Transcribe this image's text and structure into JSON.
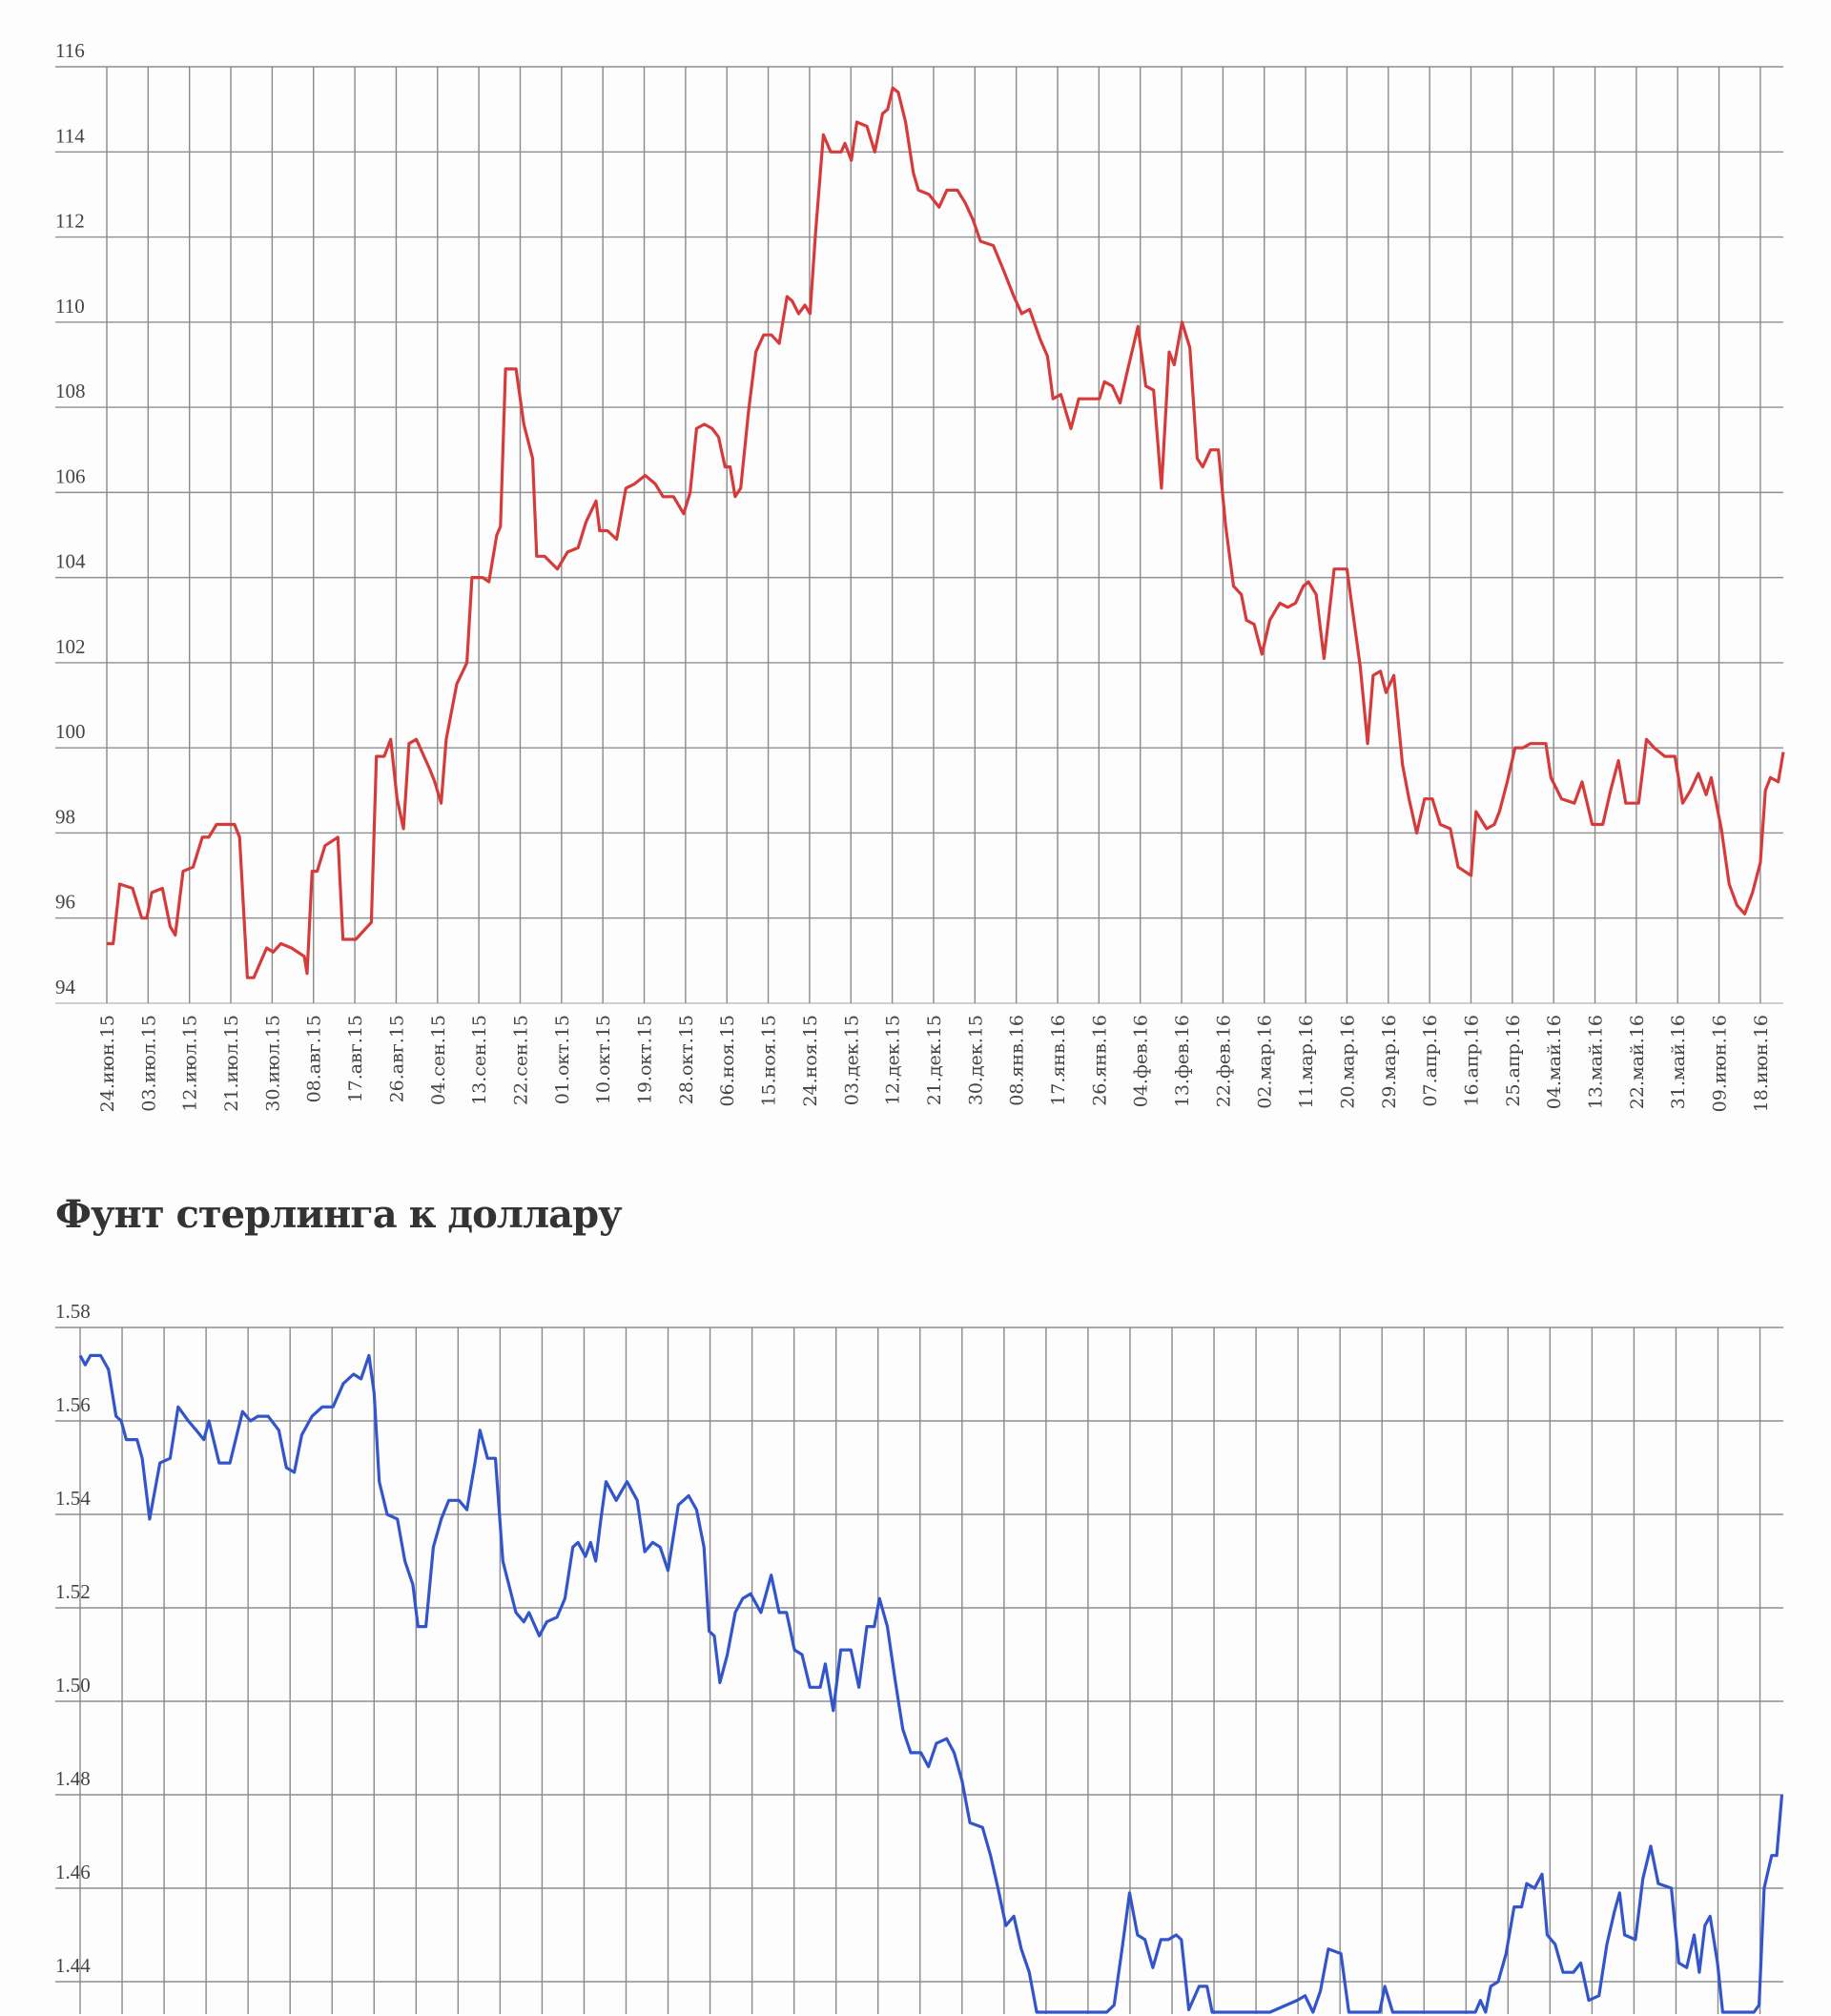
{
  "chart_data": [
    {
      "type": "line",
      "title": "",
      "x_unit": "days since first tick label",
      "x_tick_step_days": 9,
      "x_tick_labels": [
        "24.июн.15",
        "03.июл.15",
        "12.июл.15",
        "21.июл.15",
        "30.июл.15",
        "08.авг.15",
        "17.авг.15",
        "26.авг.15",
        "04.сен.15",
        "13.сен.15",
        "22.сен.15",
        "01.окт.15",
        "10.окт.15",
        "19.окт.15",
        "28.окт.15",
        "06.ноя.15",
        "15.ноя.15",
        "24.ноя.15",
        "03.дек.15",
        "12.дек.15",
        "21.дек.15",
        "30.дек.15",
        "08.янв.16",
        "17.янв.16",
        "26.янв.16",
        "04.фев.16",
        "13.фев.16",
        "22.фев.16",
        "02.мар.16",
        "11.мар.16",
        "20.мар.16",
        "29.мар.16",
        "07.апр.16",
        "16.апр.16",
        "25.апр.16",
        "04.май.16",
        "13.май.16",
        "22.май.16",
        "31.май.16",
        "09.июн.16",
        "18.июн.16"
      ],
      "xlim": [
        0,
        365
      ],
      "ylim": [
        94,
        116
      ],
      "y_ticks": [
        "116",
        "114",
        "112",
        "110",
        "108",
        "106",
        "104",
        "102",
        "100",
        "98",
        "96",
        "94"
      ],
      "y_tick_values": [
        116,
        114,
        112,
        110,
        108,
        106,
        104,
        102,
        100,
        98,
        96,
        94
      ],
      "grid": true,
      "series": [
        {
          "name": "",
          "color": "#d63b3b",
          "x": [
            0,
            1.4,
            2.8,
            5.6,
            7.6,
            8.7,
            9.8,
            12.1,
            13.8,
            14.9,
            16.6,
            18.8,
            20.8,
            22.2,
            23.9,
            26.1,
            27.8,
            28.9,
            30.6,
            32.0,
            34.8,
            36.2,
            37.9,
            40.2,
            43.0,
            43.6,
            44.7,
            45.8,
            47.5,
            50.3,
            51.4,
            54.2,
            57.6,
            58.7,
            60.4,
            61.8,
            63.2,
            64.6,
            65.8,
            67.4,
            70.3,
            71.4,
            72.8,
            73.9,
            76.2,
            78.4,
            79.5,
            81.8,
            83.2,
            84.9,
            85.7,
            86.8,
            89.1,
            90.8,
            92.7,
            93.6,
            95.3,
            98.1,
            100.3,
            102.6,
            104.3,
            106.5,
            107.3,
            109.0,
            111.0,
            113.0,
            114.9,
            117.2,
            119.4,
            121.1,
            123.4,
            125.6,
            127.0,
            128.4,
            130.1,
            131.8,
            133.2,
            134.6,
            135.7,
            136.8,
            138.0,
            139.7,
            141.3,
            143.0,
            144.7,
            146.4,
            148.1,
            149.2,
            150.6,
            152.0,
            153.1,
            154.3,
            156.0,
            157.6,
            159.9,
            160.7,
            162.1,
            163.3,
            165.5,
            167.2,
            168.9,
            170.0,
            171.1,
            172.3,
            173.9,
            175.6,
            176.7,
            179.0,
            181.2,
            182.9,
            185.2,
            186.9,
            188.6,
            190.2,
            193.0,
            195.3,
            197.5,
            199.2,
            200.9,
            203.2,
            204.8,
            206.0,
            207.7,
            209.9,
            211.6,
            214.4,
            216.1,
            217.2,
            218.9,
            220.6,
            222.3,
            224.5,
            226.2,
            227.9,
            229.6,
            231.3,
            232.4,
            234.1,
            235.8,
            237.4,
            238.6,
            240.3,
            242.0,
            243.6,
            245.3,
            247.0,
            248.1,
            249.8,
            251.5,
            253.2,
            255.4,
            257.1,
            258.8,
            260.5,
            261.6,
            263.3,
            265.0,
            267.2,
            270.0,
            272.9,
            274.5,
            275.7,
            277.3,
            278.5,
            280.2,
            282.1,
            283.5,
            285.2,
            286.9,
            288.6,
            290.3,
            292.5,
            294.2,
            297.0,
            298.1,
            300.4,
            302.1,
            303.2,
            304.9,
            306.6,
            308.3,
            309.9,
            313.3,
            314.4,
            316.7,
            319.5,
            321.2,
            323.4,
            325.7,
            327.4,
            329.1,
            330.7,
            333.5,
            335.2,
            336.9,
            339.2,
            341.4,
            343.1,
            344.8,
            346.5,
            348.2,
            349.3,
            351.5,
            353.2,
            354.9,
            356.6,
            358.3,
            360.0,
            361.1,
            362.2,
            363.9,
            365.0
          ],
          "values": [
            95.4,
            95.4,
            96.8,
            96.7,
            96.0,
            96.0,
            96.6,
            96.7,
            95.8,
            95.6,
            97.1,
            97.2,
            97.9,
            97.9,
            98.2,
            98.2,
            98.2,
            97.9,
            94.6,
            94.6,
            95.3,
            95.2,
            95.4,
            95.3,
            95.1,
            94.7,
            97.1,
            97.1,
            97.7,
            97.9,
            95.5,
            95.5,
            95.9,
            99.8,
            99.8,
            100.2,
            98.8,
            98.1,
            100.1,
            100.2,
            99.5,
            99.2,
            98.7,
            100.2,
            101.5,
            102.0,
            104.0,
            104.0,
            103.9,
            105.0,
            105.2,
            108.9,
            108.9,
            107.6,
            106.8,
            104.5,
            104.5,
            104.2,
            104.6,
            104.7,
            105.3,
            105.8,
            105.1,
            105.1,
            104.9,
            106.1,
            106.2,
            106.4,
            106.2,
            105.9,
            105.9,
            105.5,
            106.0,
            107.5,
            107.6,
            107.5,
            107.3,
            106.6,
            106.6,
            105.9,
            106.1,
            107.9,
            109.3,
            109.7,
            109.7,
            109.5,
            110.6,
            110.5,
            110.2,
            110.4,
            110.2,
            112.1,
            114.4,
            114.0,
            114.0,
            114.2,
            113.8,
            114.7,
            114.6,
            114.0,
            114.9,
            115.0,
            115.5,
            115.4,
            114.7,
            113.5,
            113.1,
            113.0,
            112.7,
            113.1,
            113.1,
            112.8,
            112.4,
            111.9,
            111.8,
            111.2,
            110.6,
            110.2,
            110.3,
            109.6,
            109.2,
            108.2,
            108.3,
            107.5,
            108.2,
            108.2,
            108.2,
            108.6,
            108.5,
            108.1,
            108.9,
            109.9,
            108.5,
            108.4,
            106.1,
            109.3,
            109.0,
            110.0,
            109.4,
            106.8,
            106.6,
            107.0,
            107.0,
            105.2,
            103.8,
            103.6,
            103.0,
            102.9,
            102.2,
            103.0,
            103.4,
            103.3,
            103.4,
            103.8,
            103.9,
            103.6,
            102.1,
            104.2,
            104.2,
            101.9,
            100.1,
            101.7,
            101.8,
            101.3,
            101.7,
            99.6,
            98.8,
            98.0,
            98.8,
            98.8,
            98.2,
            98.1,
            97.2,
            97.0,
            98.5,
            98.1,
            98.2,
            98.5,
            99.2,
            100.0,
            100.0,
            100.1,
            100.1,
            99.3,
            98.8,
            98.7,
            99.2,
            98.2,
            98.2,
            99.0,
            99.7,
            98.7,
            98.7,
            100.2,
            100.0,
            99.8,
            99.8,
            98.7,
            99.0,
            99.4,
            98.9,
            99.3,
            98.1,
            96.8,
            96.3,
            96.1,
            96.6,
            97.3,
            99.0,
            99.3,
            99.2,
            99.9
          ]
        }
      ]
    },
    {
      "type": "line",
      "title": "Фунт стерлинга к доллару",
      "x_unit": "days since start",
      "x_tick_step_days": 9,
      "xlim": [
        0,
        365
      ],
      "ylim": [
        1.432,
        1.58
      ],
      "y_ticks": [
        "1.58",
        "1.56",
        "1.54",
        "1.52",
        "1.50",
        "1.48",
        "1.46",
        "1.44"
      ],
      "y_tick_values": [
        1.58,
        1.56,
        1.54,
        1.52,
        1.5,
        1.48,
        1.46,
        1.44
      ],
      "grid": true,
      "series": [
        {
          "name": "",
          "color": "#3355cc",
          "x": [
            0,
            1.1,
            2.2,
            4.4,
            6.1,
            7.7,
            8.8,
            9.9,
            12.2,
            13.3,
            14.9,
            16.0,
            17.1,
            19.3,
            21.0,
            23.2,
            24.9,
            26.5,
            27.6,
            29.8,
            32.1,
            34.8,
            36.5,
            38.1,
            40.3,
            42.6,
            44.2,
            45.9,
            47.5,
            49.7,
            51.9,
            54.2,
            56.4,
            58.6,
            60.2,
            61.9,
            63.0,
            64.1,
            65.8,
            68.0,
            69.6,
            71.3,
            72.4,
            74.1,
            75.7,
            77.4,
            79.0,
            81.2,
            82.9,
            84.6,
            85.7,
            87.3,
            89.0,
            90.6,
            93.4,
            95.1,
            96.2,
            98.4,
            100.0,
            102.2,
            103.9,
            105.6,
            106.7,
            108.3,
            109.4,
            110.5,
            111.6,
            112.7,
            114.9,
            117.2,
            119.4,
            121.0,
            122.7,
            124.3,
            126.0,
            128.2,
            130.4,
            132.1,
            133.7,
            134.8,
            135.9,
            137.1,
            138.7,
            140.4,
            142.0,
            143.7,
            145.9,
            148.1,
            149.8,
            151.4,
            153.1,
            154.7,
            156.4,
            158.6,
            159.7,
            161.4,
            163.0,
            165.2,
            166.9,
            168.6,
            170.2,
            171.3,
            173.0,
            174.6,
            176.3,
            178.0,
            180.2,
            181.8,
            183.5,
            185.7,
            187.3,
            189.0,
            190.7,
            193.4,
            195.1,
            196.7,
            198.4,
            200.1,
            201.7,
            203.4,
            205.0,
            209.4,
            215.0,
            220.0,
            221.6,
            223.3,
            224.9,
            226.6,
            228.2,
            229.9,
            231.6,
            233.2,
            234.9,
            236.0,
            237.6,
            239.8,
            241.5,
            242.6,
            248.1,
            255.0,
            260.8,
            262.5,
            264.2,
            265.8,
            267.5,
            270.2,
            271.9,
            275.2,
            278.5,
            279.6,
            281.3,
            286.8,
            293.7,
            299.0,
            300.1,
            301.2,
            302.3,
            303.9,
            305.6,
            307.3,
            308.9,
            310.0,
            311.7,
            313.3,
            314.4,
            316.1,
            317.8,
            320.0,
            321.6,
            323.3,
            325.5,
            327.2,
            328.8,
            329.9,
            331.0,
            333.3,
            334.9,
            336.6,
            338.2,
            341.0,
            342.6,
            344.3,
            345.9,
            347.0,
            348.2,
            349.3,
            350.9,
            352.0,
            355.3,
            358.7,
            359.8,
            360.9,
            362.5,
            363.6,
            364.7
          ],
          "values": [
            1.574,
            1.572,
            1.574,
            1.574,
            1.571,
            1.561,
            1.56,
            1.556,
            1.556,
            1.552,
            1.539,
            1.545,
            1.551,
            1.552,
            1.563,
            1.56,
            1.558,
            1.556,
            1.56,
            1.551,
            1.551,
            1.562,
            1.56,
            1.561,
            1.561,
            1.558,
            1.55,
            1.549,
            1.557,
            1.561,
            1.563,
            1.563,
            1.568,
            1.57,
            1.569,
            1.574,
            1.566,
            1.547,
            1.54,
            1.539,
            1.53,
            1.525,
            1.516,
            1.516,
            1.533,
            1.539,
            1.543,
            1.543,
            1.541,
            1.551,
            1.558,
            1.552,
            1.552,
            1.53,
            1.519,
            1.517,
            1.519,
            1.514,
            1.517,
            1.518,
            1.522,
            1.533,
            1.534,
            1.531,
            1.534,
            1.53,
            1.539,
            1.547,
            1.543,
            1.547,
            1.543,
            1.532,
            1.534,
            1.533,
            1.528,
            1.542,
            1.544,
            1.541,
            1.533,
            1.515,
            1.514,
            1.504,
            1.51,
            1.519,
            1.522,
            1.523,
            1.519,
            1.527,
            1.519,
            1.519,
            1.511,
            1.51,
            1.503,
            1.503,
            1.508,
            1.498,
            1.511,
            1.511,
            1.503,
            1.516,
            1.516,
            1.522,
            1.516,
            1.505,
            1.494,
            1.489,
            1.489,
            1.486,
            1.491,
            1.492,
            1.489,
            1.483,
            1.474,
            1.473,
            1.467,
            1.46,
            1.452,
            1.454,
            1.447,
            1.442,
            1.431,
            1.42,
            1.415,
            1.425,
            1.435,
            1.447,
            1.459,
            1.45,
            1.449,
            1.443,
            1.449,
            1.449,
            1.45,
            1.449,
            1.434,
            1.439,
            1.439,
            1.43,
            1.41,
            1.415,
            1.436,
            1.437,
            1.43,
            1.438,
            1.447,
            1.446,
            1.43,
            1.425,
            1.43,
            1.439,
            1.43,
            1.41,
            1.415,
            1.43,
            1.436,
            1.433,
            1.439,
            1.44,
            1.446,
            1.456,
            1.456,
            1.461,
            1.46,
            1.463,
            1.45,
            1.448,
            1.442,
            1.442,
            1.444,
            1.436,
            1.437,
            1.448,
            1.455,
            1.459,
            1.45,
            1.449,
            1.462,
            1.469,
            1.461,
            1.46,
            1.444,
            1.443,
            1.45,
            1.442,
            1.452,
            1.454,
            1.444,
            1.43,
            1.42,
            1.43,
            1.435,
            1.46,
            1.467,
            1.467,
            1.48
          ]
        }
      ]
    }
  ]
}
